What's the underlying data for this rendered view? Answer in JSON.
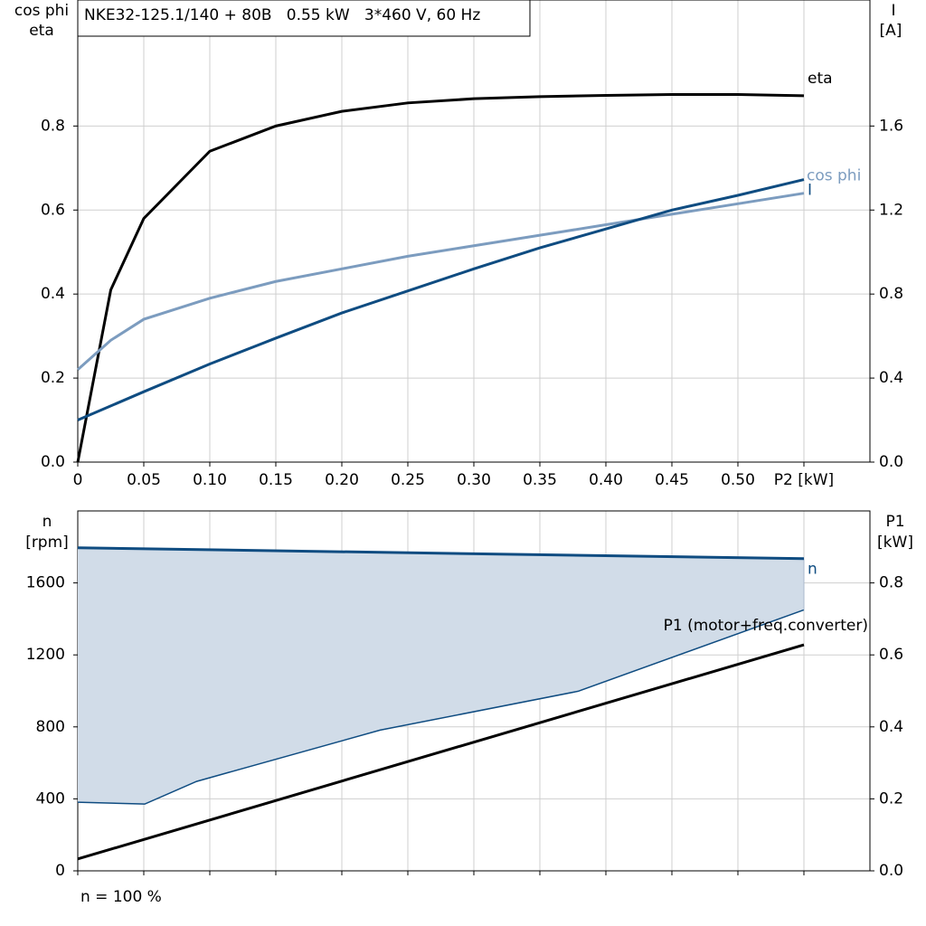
{
  "chart_data": [
    {
      "type": "line",
      "title": "NKE32-125.1/140 + 80B   0.55 kW   3*460 V, 60 Hz",
      "ylabel": [
        "cos phi",
        "eta"
      ],
      "y2label": [
        "I",
        "[A]"
      ],
      "xlim": [
        0,
        0.6
      ],
      "xticks": [
        0,
        0.05,
        {
          "value": 0.1,
          "label": "0.10"
        },
        0.15,
        {
          "value": 0.2,
          "label": "0.20"
        },
        0.25,
        {
          "value": 0.3,
          "label": "0.30"
        },
        0.35,
        {
          "value": 0.4,
          "label": "0.40"
        },
        0.45,
        {
          "value": 0.5,
          "label": "0.50"
        },
        {
          "value": 0.55,
          "label": "P2 [kW]"
        }
      ],
      "ylim": [
        0,
        1.1
      ],
      "yticks": [
        {
          "value": 0,
          "label": "0.0"
        },
        0.2,
        0.4,
        0.6,
        0.8
      ],
      "y2lim": [
        0,
        2.2
      ],
      "y2ticks": [
        {
          "value": 0,
          "label": "0.0"
        },
        0.4,
        0.8,
        1.2,
        1.6
      ],
      "grid": true,
      "series": [
        {
          "name": "eta",
          "color": "#000000",
          "x": [
            0,
            0.025,
            0.05,
            0.1,
            0.15,
            0.2,
            0.25,
            0.3,
            0.35,
            0.4,
            0.45,
            0.5,
            0.55
          ],
          "values": [
            0,
            0.41,
            0.58,
            0.74,
            0.8,
            0.835,
            0.855,
            0.865,
            0.87,
            0.873,
            0.875,
            0.875,
            0.872
          ]
        },
        {
          "name": "cos phi",
          "color": "#7c9cbf",
          "x": [
            0,
            0.025,
            0.05,
            0.1,
            0.15,
            0.2,
            0.25,
            0.3,
            0.35,
            0.4,
            0.45,
            0.5,
            0.55
          ],
          "values": [
            0.22,
            0.29,
            0.34,
            0.39,
            0.43,
            0.46,
            0.49,
            0.515,
            0.54,
            0.565,
            0.59,
            0.615,
            0.64
          ]
        },
        {
          "name": "I",
          "color": "#0f4c81",
          "axis": "y2",
          "x": [
            0,
            0.05,
            0.1,
            0.15,
            0.2,
            0.25,
            0.3,
            0.35,
            0.4,
            0.45,
            0.5,
            0.55
          ],
          "values": [
            0.2,
            0.335,
            0.467,
            0.59,
            0.71,
            0.815,
            0.92,
            1.02,
            1.11,
            1.2,
            1.27,
            1.345
          ]
        }
      ]
    },
    {
      "type": "line",
      "ylabel": [
        "n",
        "[rpm]"
      ],
      "y2label": [
        "P1",
        "[kW]"
      ],
      "annotation": "n = 100 %",
      "xlim": [
        0,
        0.6
      ],
      "xticks": [
        0,
        0.05,
        0.1,
        0.15,
        0.2,
        0.25,
        0.3,
        0.35,
        0.4,
        0.45,
        0.5,
        0.55
      ],
      "ylim": [
        0,
        2000
      ],
      "yticks": [
        0,
        400,
        800,
        1200,
        1600
      ],
      "y2lim": [
        0,
        1
      ],
      "y2ticks": [
        {
          "value": 0,
          "label": "0.0"
        },
        0.2,
        0.4,
        0.6,
        0.8
      ],
      "grid": true,
      "range_fill": "#d1dce8",
      "range_lower": {
        "color": "#0f4c81",
        "x": [
          0,
          0.0507,
          0.09,
          0.229,
          0.379,
          0.55
        ],
        "values": [
          381,
          371,
          497,
          782,
          998,
          1450
        ]
      },
      "series": [
        {
          "name": "n",
          "color": "#0f4c81",
          "x": [
            0,
            0.55
          ],
          "values": [
            1795,
            1735
          ]
        },
        {
          "name": "P1 (motor+freq.converter)",
          "color": "#000000",
          "axis": "y2",
          "x": [
            0,
            0.55
          ],
          "values": [
            0.033,
            0.628
          ]
        }
      ]
    }
  ]
}
